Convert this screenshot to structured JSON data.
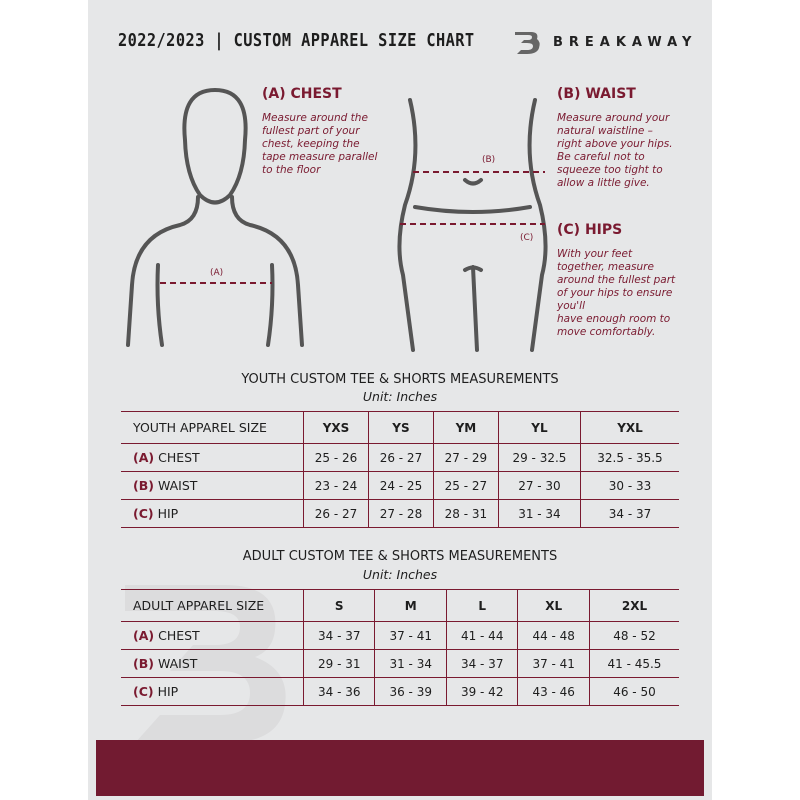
{
  "header": {
    "title": "2022/2023  |  CUSTOM APPAREL SIZE CHART",
    "brand": "BREAKAWAY",
    "brand_logo_letter": "B"
  },
  "chest": {
    "heading": "(A) CHEST",
    "text": [
      "Measure around the",
      "fullest part of your",
      "chest, keeping the",
      "tape measure parallel",
      "to the floor"
    ],
    "marker": "(A)"
  },
  "waist": {
    "heading": "(B) WAIST",
    "text": [
      "Measure around your",
      "natural waistline –",
      "right above your hips.",
      "Be careful not to",
      "squeeze too tight to",
      "allow a little give."
    ],
    "marker": "(B)"
  },
  "hips": {
    "heading": "(C) HIPS",
    "text": [
      "With your feet",
      "together, measure",
      "around the fullest part",
      "of your hips to ensure",
      "you'll",
      "have enough room to",
      "move comfortably."
    ],
    "marker": "(C)"
  },
  "colors": {
    "accent": "#7a1a30",
    "footer": "#721b31",
    "background": "#e6e7e8"
  },
  "youth": {
    "title": "YOUTH CUSTOM TEE & SHORTS MEASUREMENTS",
    "unit": "Unit: Inches",
    "size_label": "YOUTH APPAREL SIZE",
    "sizes": [
      "YXS",
      "YS",
      "YM",
      "YL",
      "YXL"
    ],
    "rows": [
      {
        "letter": "(A)",
        "name": "CHEST",
        "values": [
          "25 - 26",
          "26 - 27",
          "27 - 29",
          "29 - 32.5",
          "32.5 - 35.5"
        ]
      },
      {
        "letter": "(B)",
        "name": "WAIST",
        "values": [
          "23 - 24",
          "24 - 25",
          "25 - 27",
          "27 - 30",
          "30 - 33"
        ]
      },
      {
        "letter": "(C)",
        "name": "HIP",
        "values": [
          "26 - 27",
          "27 - 28",
          "28 - 31",
          "31 - 34",
          "34 - 37"
        ]
      }
    ]
  },
  "adult": {
    "title": "ADULT CUSTOM TEE & SHORTS MEASUREMENTS",
    "unit": "Unit: Inches",
    "size_label": "ADULT APPAREL SIZE",
    "sizes": [
      "S",
      "M",
      "L",
      "XL",
      "2XL"
    ],
    "rows": [
      {
        "letter": "(A)",
        "name": "CHEST",
        "values": [
          "34 - 37",
          "37 - 41",
          "41 - 44",
          "44 - 48",
          "48 - 52"
        ]
      },
      {
        "letter": "(B)",
        "name": "WAIST",
        "values": [
          "29 - 31",
          "31 - 34",
          "34 - 37",
          "37 - 41",
          "41 - 45.5"
        ]
      },
      {
        "letter": "(C)",
        "name": "HIP",
        "values": [
          "34 - 36",
          "36 - 39",
          "39 - 42",
          "43 - 46",
          "46 - 50"
        ]
      }
    ]
  }
}
